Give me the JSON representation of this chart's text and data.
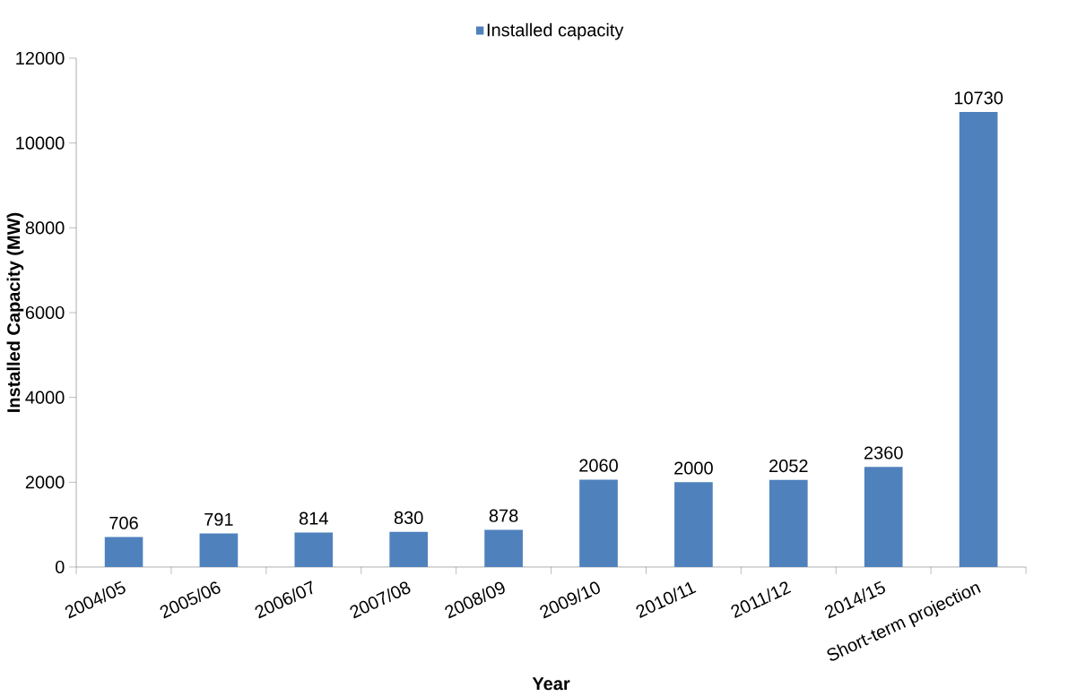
{
  "chart_data": {
    "type": "bar",
    "xlabel": "Year",
    "ylabel": "Installed Capacity (MW)",
    "categories": [
      "2004/05",
      "2005/06",
      "2006/07",
      "2007/08",
      "2008/09",
      "2009/10",
      "2010/11",
      "2011/12",
      "2014/15",
      "Short-term projection"
    ],
    "series": [
      {
        "name": "Installed capacity",
        "color": "#4f81bd",
        "values": [
          706,
          791,
          814,
          830,
          878,
          2060,
          2000,
          2052,
          2360,
          10730
        ]
      }
    ],
    "ylim": [
      0,
      12000
    ],
    "yticks": [
      0,
      2000,
      4000,
      6000,
      8000,
      10000,
      12000
    ],
    "legend": "top",
    "data_labels": true
  }
}
